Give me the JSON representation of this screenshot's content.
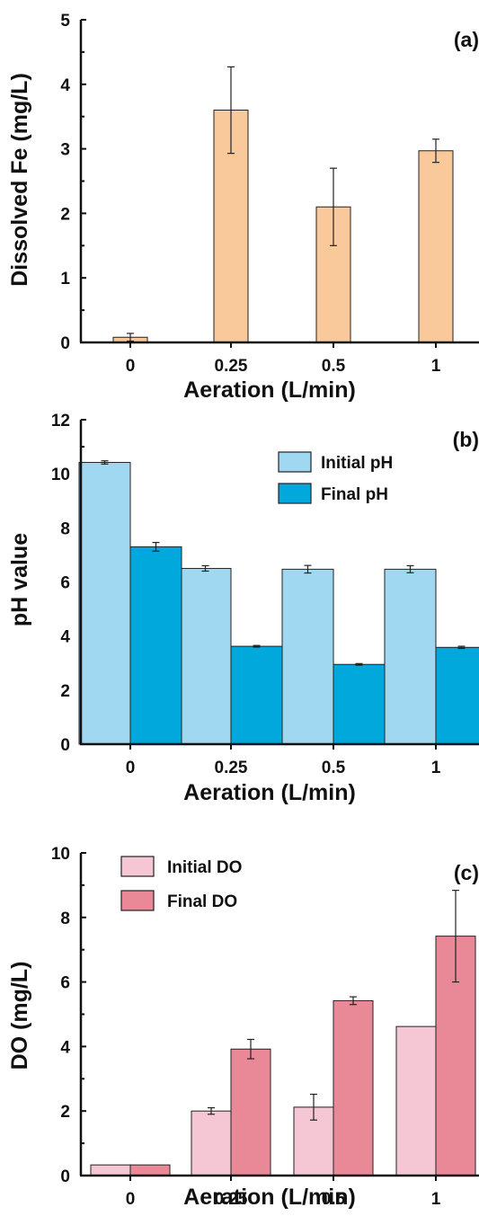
{
  "chart_data": [
    {
      "panel_label": "(a)",
      "type": "bar",
      "categories": [
        "0",
        "0.25",
        "0.5",
        "1"
      ],
      "series": [
        {
          "values": [
            0.08,
            3.6,
            2.1,
            2.97
          ],
          "errors": [
            0.06,
            0.67,
            0.6,
            0.18
          ],
          "color": "#f9c89b"
        }
      ],
      "xlabel": "Aeration (L/min)",
      "ylabel": "Dissolved Fe (mg/L)",
      "ylim": [
        0,
        5
      ],
      "yticks": [
        "0",
        "1",
        "2",
        "3",
        "4",
        "5"
      ],
      "legend": null
    },
    {
      "panel_label": "(b)",
      "type": "bar",
      "categories": [
        "0",
        "0.25",
        "0.5",
        "1"
      ],
      "series": [
        {
          "name": "Initial pH",
          "values": [
            10.42,
            6.5,
            6.47,
            6.47
          ],
          "errors": [
            0.06,
            0.1,
            0.14,
            0.13
          ],
          "color": "#9fd8f0"
        },
        {
          "name": "Final pH",
          "values": [
            7.3,
            3.62,
            2.95,
            3.58
          ],
          "errors": [
            0.16,
            0.03,
            0.03,
            0.04
          ],
          "color": "#00a8dc"
        }
      ],
      "xlabel": "Aeration (L/min)",
      "ylabel": "pH value",
      "ylim": [
        0,
        12
      ],
      "yticks": [
        "0",
        "2",
        "4",
        "6",
        "8",
        "10",
        "12"
      ],
      "legend": "top-right"
    },
    {
      "panel_label": "(c)",
      "type": "bar",
      "categories": [
        "0",
        "0.25",
        "0.5",
        "1"
      ],
      "series": [
        {
          "name": "Initial DO",
          "values": [
            0.33,
            2.0,
            2.12,
            4.62
          ],
          "errors": [
            0,
            0.1,
            0.4,
            0
          ],
          "color": "#f5c6d4"
        },
        {
          "name": "Final DO",
          "values": [
            0.33,
            3.92,
            5.42,
            7.42
          ],
          "errors": [
            0,
            0.3,
            0.12,
            1.42
          ],
          "color": "#e98997"
        }
      ],
      "xlabel": "Aeration (L/min)",
      "ylabel": "DO (mg/L)",
      "ylim": [
        0,
        10
      ],
      "yticks": [
        "0",
        "2",
        "4",
        "6",
        "8",
        "10"
      ],
      "legend": "top-left"
    }
  ]
}
